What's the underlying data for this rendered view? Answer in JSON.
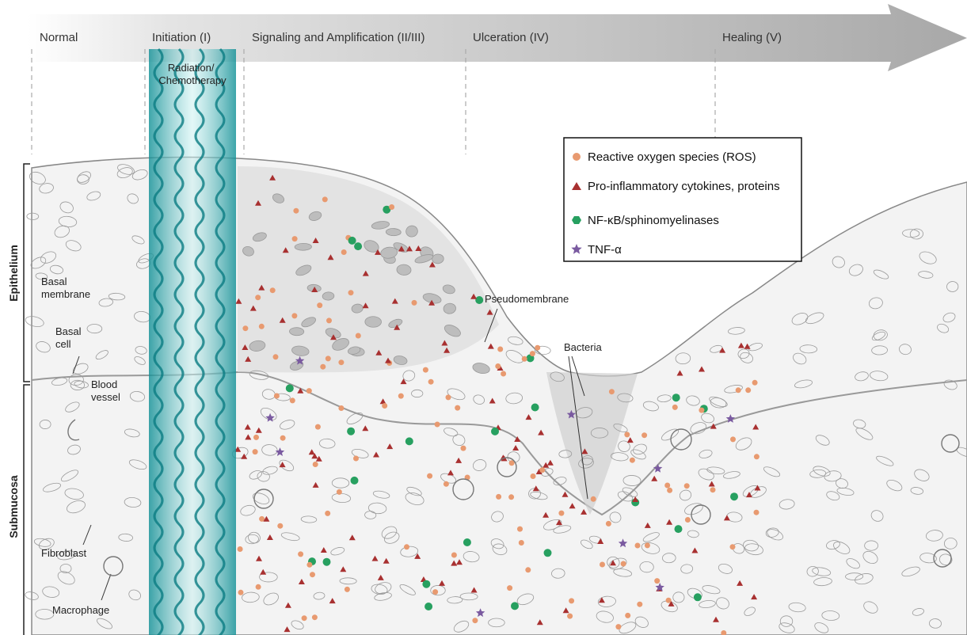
{
  "stages": [
    "Normal",
    "Initiation (I)",
    "Signaling and Amplification (II/III)",
    "Ulceration (IV)",
    "Healing (V)"
  ],
  "treatment": {
    "lines": [
      "Radiation/",
      "Chemotherapy"
    ]
  },
  "layers": {
    "epithelium": "Epithelium",
    "submucosa": "Submucosa"
  },
  "labels": {
    "basal_membrane": [
      "Basal",
      "membrane"
    ],
    "basal_cell": [
      "Basal",
      "cell"
    ],
    "blood_vessel": [
      "Blood",
      "vessel"
    ],
    "fibroblast": "Fibroblast",
    "macrophage": "Macrophage",
    "pseudomembrane": "Pseudomembrane",
    "bacteria": "Bacteria"
  },
  "legend": [
    "Reactive oxygen species (ROS)",
    "Pro-inflammatory cytokines, proteins",
    "NF-κB/sphinomyelinases",
    "TNF-α"
  ]
}
